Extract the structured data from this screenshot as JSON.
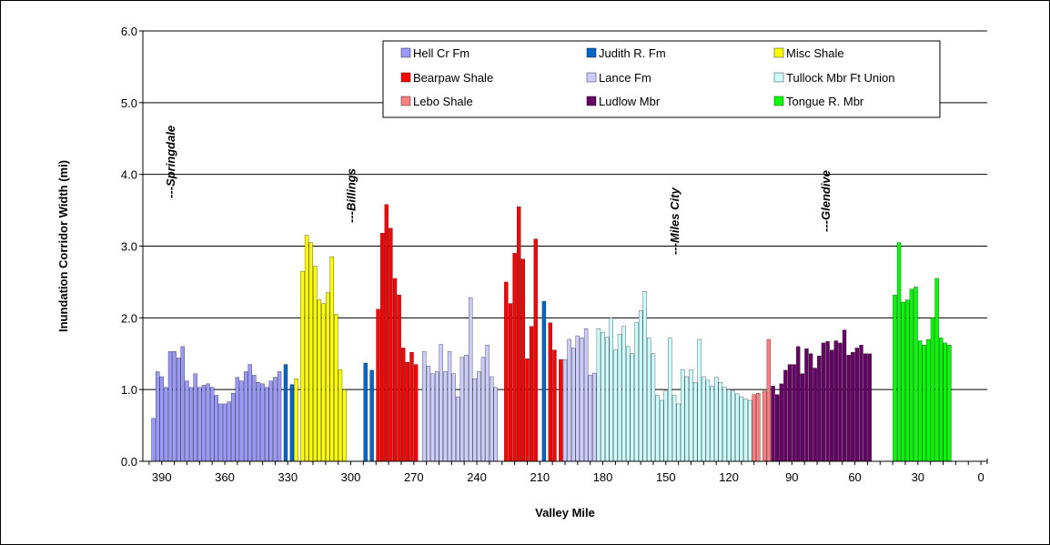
{
  "chart_data": {
    "type": "bar",
    "title": "",
    "xlabel": "Valley Mile",
    "ylabel": "Inundation Corridor Width (mi)",
    "xlim": [
      399,
      -3
    ],
    "ylim": [
      0,
      6
    ],
    "x_ticks": [
      390,
      360,
      330,
      300,
      270,
      240,
      210,
      180,
      150,
      120,
      90,
      60,
      30,
      0
    ],
    "x_tick_labels": [
      "390",
      "360",
      "330",
      "300",
      "270",
      "240",
      "210",
      "180",
      "150",
      "120",
      "90",
      "60",
      "30",
      "0"
    ],
    "y_ticks": [
      0,
      1,
      2,
      3,
      4,
      5,
      6
    ],
    "y_tick_labels": [
      "0.0",
      "1.0",
      "2.0",
      "3.0",
      "4.0",
      "5.0",
      "6.0"
    ],
    "grid": "horizontal",
    "legend_position": "top-right",
    "annotations": [
      {
        "text": "---Springdale",
        "x": 390
      },
      {
        "text": "---Billings",
        "x": 304
      },
      {
        "text": "---Miles City",
        "x": 150
      },
      {
        "text": "---Glendive",
        "x": 78
      }
    ],
    "series": [
      {
        "name": "Hell Cr Fm",
        "color": "#9999ff",
        "x": [
          394,
          392,
          390,
          388,
          386,
          384,
          382,
          380,
          378,
          376,
          374,
          372,
          370,
          368,
          366,
          364,
          362,
          360,
          358,
          356,
          354,
          352,
          350,
          348,
          346,
          344,
          342,
          340,
          338,
          336,
          334
        ],
        "values": [
          0.6,
          1.25,
          1.18,
          1.03,
          1.53,
          1.53,
          1.44,
          1.6,
          1.12,
          1.03,
          1.22,
          1.03,
          1.06,
          1.08,
          1.03,
          0.92,
          0.8,
          0.8,
          0.83,
          0.95,
          1.17,
          1.12,
          1.25,
          1.35,
          1.2,
          1.1,
          1.08,
          1.03,
          1.12,
          1.17,
          1.25
        ]
      },
      {
        "name": "Judith R. Fm",
        "color": "#0066cc",
        "x": [
          331,
          328,
          293,
          290,
          208
        ],
        "values": [
          1.35,
          1.07,
          1.37,
          1.27,
          2.23
        ]
      },
      {
        "name": "Misc Shale",
        "color": "#ffff00",
        "x": [
          326,
          323,
          321,
          319,
          317,
          315,
          313,
          311,
          309,
          307,
          305,
          303
        ],
        "values": [
          1.15,
          2.65,
          3.15,
          3.05,
          2.72,
          2.25,
          2.2,
          2.35,
          2.85,
          2.05,
          1.28,
          1.0
        ]
      },
      {
        "name": "Bearpaw Shale",
        "color": "#ff0000",
        "x": [
          287,
          285,
          283,
          281,
          279,
          277,
          275,
          273,
          271,
          269,
          226,
          224,
          222,
          220,
          218,
          216,
          214,
          212,
          205,
          203,
          200
        ],
        "values": [
          2.12,
          3.18,
          3.58,
          3.25,
          2.55,
          2.32,
          1.58,
          1.38,
          1.52,
          1.35,
          2.5,
          2.2,
          2.9,
          3.55,
          2.82,
          1.43,
          1.88,
          3.1,
          1.93,
          1.55,
          1.42
        ]
      },
      {
        "name": "Lance Fm",
        "color": "#ccccff",
        "x": [
          265,
          263,
          261,
          259,
          257,
          255,
          253,
          251,
          249,
          247,
          245,
          243,
          241,
          239,
          237,
          235,
          233,
          231,
          198,
          196,
          194,
          192,
          190,
          188,
          186,
          184
        ],
        "values": [
          1.53,
          1.33,
          1.22,
          1.25,
          1.63,
          1.25,
          1.53,
          1.22,
          0.9,
          1.45,
          1.48,
          2.28,
          1.15,
          1.25,
          1.45,
          1.62,
          1.18,
          1.03,
          1.42,
          1.7,
          1.58,
          1.75,
          1.72,
          1.85,
          1.2,
          1.23
        ]
      },
      {
        "name": "Tullock Mbr Ft Union",
        "color": "#ccffff",
        "x": [
          182,
          180,
          178,
          176,
          174,
          172,
          170,
          168,
          166,
          164,
          162,
          160,
          158,
          156,
          154,
          152,
          150,
          148,
          146,
          144,
          142,
          140,
          138,
          136,
          134,
          132,
          130,
          128,
          126,
          124,
          122,
          120,
          118,
          116,
          114,
          112,
          110
        ],
        "values": [
          1.85,
          1.8,
          1.73,
          2.0,
          1.55,
          1.77,
          1.88,
          1.6,
          1.5,
          1.93,
          2.1,
          2.37,
          1.72,
          1.5,
          0.92,
          0.85,
          0.98,
          1.72,
          0.92,
          0.8,
          1.28,
          1.18,
          1.28,
          1.1,
          1.7,
          1.18,
          1.13,
          1.05,
          1.17,
          1.1,
          1.03,
          1.0,
          0.98,
          0.94,
          0.9,
          0.87,
          0.85
        ]
      },
      {
        "name": "Lebo Shale",
        "color": "#ff8080",
        "x": [
          108,
          106,
          103,
          101
        ],
        "values": [
          0.93,
          0.95,
          0.98,
          1.7
        ]
      },
      {
        "name": "Ludlow Mbr",
        "color": "#660066",
        "x": [
          99,
          97,
          95,
          93,
          91,
          89,
          87,
          85,
          83,
          81,
          79,
          77,
          75,
          73,
          71,
          69,
          67,
          65,
          63,
          61,
          59,
          57,
          55,
          53
        ],
        "values": [
          1.05,
          0.93,
          1.08,
          1.27,
          1.35,
          1.35,
          1.6,
          1.22,
          1.57,
          1.5,
          1.3,
          1.47,
          1.65,
          1.67,
          1.55,
          1.68,
          1.65,
          1.83,
          1.48,
          1.52,
          1.58,
          1.62,
          1.5,
          1.5
        ]
      },
      {
        "name": "Tongue R. Mbr",
        "color": "#00ff00",
        "x": [
          41,
          39,
          37,
          35,
          33,
          31,
          29,
          27,
          25,
          23,
          21,
          19,
          17,
          15
        ],
        "values": [
          2.32,
          3.05,
          2.22,
          2.25,
          2.4,
          2.43,
          1.68,
          1.62,
          1.7,
          2.0,
          2.55,
          1.72,
          1.65,
          1.62
        ]
      }
    ]
  }
}
